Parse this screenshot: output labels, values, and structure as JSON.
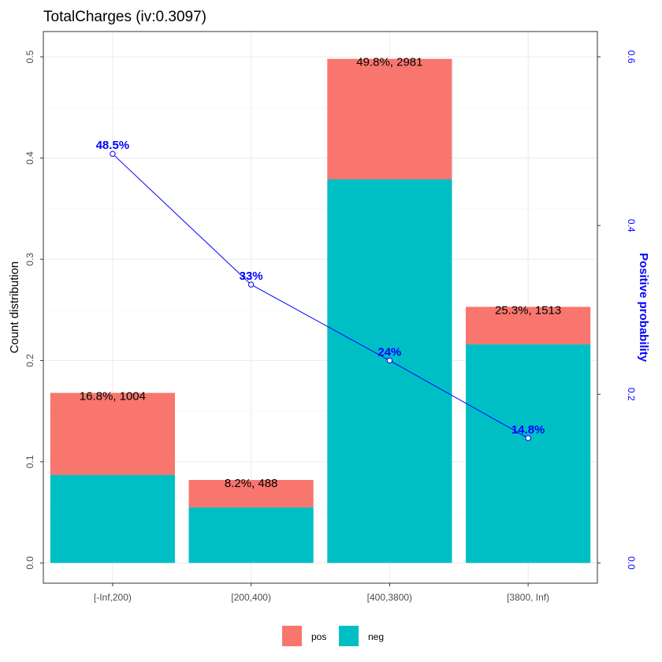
{
  "chart_data": {
    "type": "bar",
    "title": "TotalCharges  (iv:0.3097)",
    "xlabel": "",
    "ylabel": "Count distribution",
    "y2label": "Positive probability",
    "ylim": [
      -0.02,
      0.525
    ],
    "y2lim": [
      -0.024,
      0.63
    ],
    "yticks": [
      "0.0",
      "0.1",
      "0.2",
      "0.3",
      "0.4",
      "0.5"
    ],
    "y2ticks": [
      "0.0",
      "0.2",
      "0.4",
      "0.6"
    ],
    "categories": [
      "[-Inf,200)",
      "[200,400)",
      "[400,3800)",
      "[3800, Inf)"
    ],
    "series": [
      {
        "name": "neg",
        "color": "#00BFC4",
        "values": [
          0.087,
          0.055,
          0.379,
          0.216
        ]
      },
      {
        "name": "pos",
        "color": "#F8766D",
        "values": [
          0.081,
          0.027,
          0.119,
          0.037
        ]
      }
    ],
    "bar_labels": [
      "16.8%, 1004",
      "8.2%, 488",
      "49.8%, 2981",
      "25.3%, 1513"
    ],
    "line": {
      "name": "Positive probability",
      "color": "#0000ff",
      "values": [
        0.485,
        0.33,
        0.24,
        0.148
      ],
      "labels": [
        "48.5%",
        "33%",
        "24%",
        "14.8%"
      ]
    },
    "legend": {
      "position": "bottom",
      "entries": [
        "pos",
        "neg"
      ]
    },
    "grid": true
  }
}
